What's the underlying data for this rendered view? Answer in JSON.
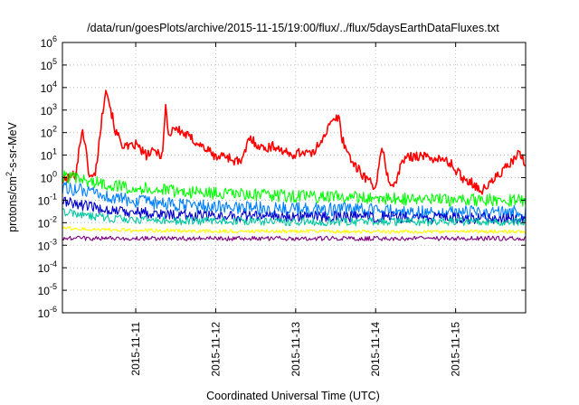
{
  "chart_data": {
    "type": "line",
    "title": "/data/run/goesPlots/archive/2015-11-15/19:00/flux/../flux/5daysEarthDataFluxes.txt",
    "xlabel": "Coordinated Universal Time (UTC)",
    "ylabel": "protons/cm2-s-sr-MeV",
    "ylabel_parts": {
      "base": "protons/cm",
      "sup": "2",
      "rest": "-s-sr-MeV"
    },
    "y_scale": "log",
    "ylim": [
      1e-06,
      1000000.0
    ],
    "y_ticks": [
      {
        "base": "10",
        "exp": "-6"
      },
      {
        "base": "10",
        "exp": "-5"
      },
      {
        "base": "10",
        "exp": "-4"
      },
      {
        "base": "10",
        "exp": "-3"
      },
      {
        "base": "10",
        "exp": "-2"
      },
      {
        "base": "10",
        "exp": "-1"
      },
      {
        "base": "10",
        "exp": "0"
      },
      {
        "base": "10",
        "exp": "1"
      },
      {
        "base": "10",
        "exp": "2"
      },
      {
        "base": "10",
        "exp": "3"
      },
      {
        "base": "10",
        "exp": "4"
      },
      {
        "base": "10",
        "exp": "5"
      },
      {
        "base": "10",
        "exp": "6"
      }
    ],
    "xlim": [
      "2015-11-10T02:00",
      "2015-11-15T21:00"
    ],
    "x_ticks": [
      "2015-11-11",
      "2015-11-12",
      "2015-11-13",
      "2015-11-14",
      "2015-11-15"
    ],
    "grid": true,
    "series": [
      {
        "color": "#ff0000",
        "x": [
          "2015-11-10T02:00",
          "2015-11-10T06:00",
          "2015-11-10T08:00",
          "2015-11-10T10:00",
          "2015-11-10T11:00",
          "2015-11-10T12:00",
          "2015-11-10T15:00",
          "2015-11-10T18:00",
          "2015-11-10T19:00",
          "2015-11-10T20:00",
          "2015-11-10T22:00",
          "2015-11-11T00:00",
          "2015-11-11T03:00",
          "2015-11-11T06:00",
          "2015-11-11T08:00",
          "2015-11-11T09:00",
          "2015-11-11T10:00",
          "2015-11-11T11:00",
          "2015-11-11T14:00",
          "2015-11-11T18:00",
          "2015-11-11T22:00",
          "2015-11-12T00:00",
          "2015-11-12T03:00",
          "2015-11-12T05:00",
          "2015-11-12T08:00",
          "2015-11-12T10:00",
          "2015-11-12T14:00",
          "2015-11-12T18:00",
          "2015-11-12T22:00",
          "2015-11-13T03:00",
          "2015-11-13T05:00",
          "2015-11-13T08:00",
          "2015-11-13T11:00",
          "2015-11-13T13:00",
          "2015-11-13T14:00",
          "2015-11-13T16:00",
          "2015-11-13T18:00",
          "2015-11-13T21:00",
          "2015-11-14T00:00",
          "2015-11-14T02:00",
          "2015-11-14T04:00",
          "2015-11-14T06:00",
          "2015-11-14T08:00",
          "2015-11-14T12:00",
          "2015-11-14T18:00",
          "2015-11-14T22:00",
          "2015-11-15T02:00",
          "2015-11-15T05:00",
          "2015-11-15T08:00",
          "2015-11-15T12:00",
          "2015-11-15T17:00",
          "2015-11-15T19:00",
          "2015-11-15T21:00"
        ],
        "y": [
          0.7,
          1.5,
          180,
          1.5,
          0.9,
          2,
          12000,
          100,
          60,
          30,
          20,
          30,
          10,
          15,
          10,
          1500,
          50,
          180,
          100,
          40,
          15,
          8,
          10,
          6,
          5,
          60,
          20,
          25,
          10,
          15,
          10,
          60,
          300,
          500,
          50,
          10,
          3,
          1,
          0.4,
          20,
          0.6,
          0.5,
          6,
          10,
          7,
          5,
          1,
          0.6,
          0.25,
          1,
          5,
          12,
          4
        ]
      },
      {
        "color": "#00ff00",
        "x": [
          "2015-11-10T02:00",
          "2015-11-10T06:00",
          "2015-11-10T12:00",
          "2015-11-10T18:00",
          "2015-11-11T00:00",
          "2015-11-11T06:00",
          "2015-11-11T12:00",
          "2015-11-12T00:00",
          "2015-11-12T12:00",
          "2015-11-13T00:00",
          "2015-11-13T12:00",
          "2015-11-14T00:00",
          "2015-11-14T12:00",
          "2015-11-15T00:00",
          "2015-11-15T12:00",
          "2015-11-15T21:00"
        ],
        "y": [
          1.2,
          0.9,
          0.6,
          0.45,
          0.35,
          0.3,
          0.25,
          0.2,
          0.17,
          0.15,
          0.14,
          0.12,
          0.11,
          0.1,
          0.1,
          0.1
        ]
      },
      {
        "color": "#0080ff",
        "x": [
          "2015-11-10T02:00",
          "2015-11-10T06:00",
          "2015-11-10T12:00",
          "2015-11-10T18:00",
          "2015-11-11T00:00",
          "2015-11-11T06:00",
          "2015-11-11T12:00",
          "2015-11-12T00:00",
          "2015-11-12T12:00",
          "2015-11-13T00:00",
          "2015-11-13T12:00",
          "2015-11-14T00:00",
          "2015-11-14T12:00",
          "2015-11-15T00:00",
          "2015-11-15T12:00",
          "2015-11-15T21:00"
        ],
        "y": [
          0.35,
          0.3,
          0.18,
          0.12,
          0.09,
          0.07,
          0.06,
          0.05,
          0.045,
          0.04,
          0.04,
          0.035,
          0.03,
          0.03,
          0.03,
          0.03
        ]
      },
      {
        "color": "#0000cc",
        "x": [
          "2015-11-10T02:00",
          "2015-11-10T06:00",
          "2015-11-10T12:00",
          "2015-11-10T18:00",
          "2015-11-11T00:00",
          "2015-11-11T06:00",
          "2015-11-11T12:00",
          "2015-11-12T00:00",
          "2015-11-12T12:00",
          "2015-11-13T00:00",
          "2015-11-13T12:00",
          "2015-11-14T00:00",
          "2015-11-14T12:00",
          "2015-11-15T00:00",
          "2015-11-15T12:00",
          "2015-11-15T21:00"
        ],
        "y": [
          0.09,
          0.07,
          0.045,
          0.035,
          0.03,
          0.025,
          0.022,
          0.02,
          0.02,
          0.02,
          0.018,
          0.018,
          0.016,
          0.016,
          0.016,
          0.016
        ]
      },
      {
        "color": "#00c8a0",
        "x": [
          "2015-11-10T02:00",
          "2015-11-10T06:00",
          "2015-11-10T12:00",
          "2015-11-10T18:00",
          "2015-11-11T00:00",
          "2015-11-11T12:00",
          "2015-11-12T00:00",
          "2015-11-13T00:00",
          "2015-11-14T00:00",
          "2015-11-15T00:00",
          "2015-11-15T21:00"
        ],
        "y": [
          0.03,
          0.025,
          0.018,
          0.015,
          0.013,
          0.012,
          0.012,
          0.011,
          0.011,
          0.011,
          0.011
        ]
      },
      {
        "color": "#ffff00",
        "x": [
          "2015-11-10T02:00",
          "2015-11-10T12:00",
          "2015-11-11T00:00",
          "2015-11-12T00:00",
          "2015-11-13T00:00",
          "2015-11-14T00:00",
          "2015-11-15T00:00",
          "2015-11-15T21:00"
        ],
        "y": [
          0.006,
          0.005,
          0.0045,
          0.0042,
          0.0042,
          0.004,
          0.004,
          0.004
        ]
      },
      {
        "color": "#800080",
        "x": [
          "2015-11-10T02:00",
          "2015-11-10T12:00",
          "2015-11-11T00:00",
          "2015-11-12T00:00",
          "2015-11-13T00:00",
          "2015-11-14T00:00",
          "2015-11-15T00:00",
          "2015-11-15T21:00"
        ],
        "y": [
          0.002,
          0.002,
          0.002,
          0.002,
          0.002,
          0.002,
          0.002,
          0.002
        ]
      }
    ]
  }
}
